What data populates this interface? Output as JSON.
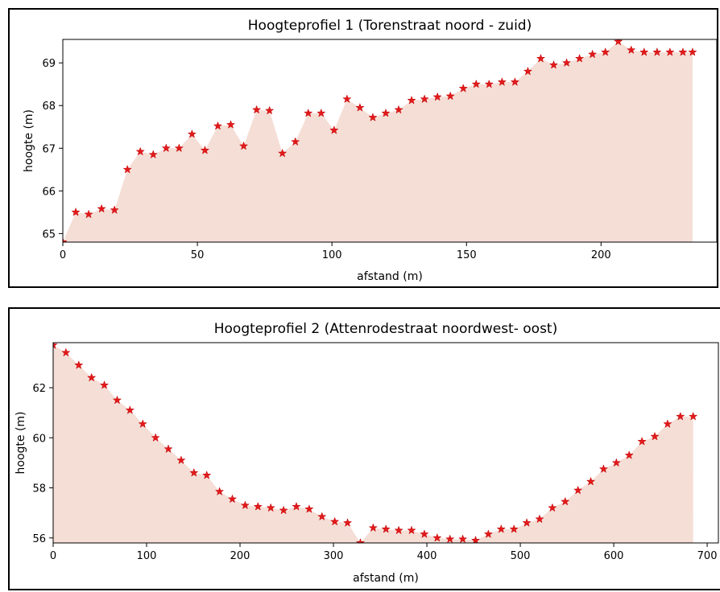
{
  "colors": {
    "marker": "#e31a1c",
    "fill": "#f5ded6",
    "axis": "#000000"
  },
  "chart_data": [
    {
      "type": "area",
      "title": "Hoogteprofiel 1 (Torenstraat noord - zuid)",
      "xlabel": "afstand (m)",
      "ylabel": "hoogte (m)",
      "xlim": [
        0,
        243
      ],
      "ylim": [
        64.8,
        69.55
      ],
      "xticks": [
        0,
        50,
        100,
        150,
        200
      ],
      "yticks": [
        65,
        66,
        67,
        68,
        69
      ],
      "grid": false,
      "marker": "star",
      "x": [
        0,
        4.8,
        9.6,
        14.4,
        19.2,
        24,
        28.8,
        33.6,
        38.4,
        43.2,
        48,
        52.8,
        57.6,
        62.4,
        67.2,
        72,
        76.8,
        81.6,
        86.4,
        91.2,
        96,
        100.8,
        105.6,
        110.4,
        115.2,
        120,
        124.8,
        129.6,
        134.4,
        139.2,
        144,
        148.8,
        153.6,
        158.4,
        163.2,
        168,
        172.8,
        177.6,
        182.4,
        187.2,
        192,
        196.8,
        201.6,
        206.4,
        211.2,
        216,
        220.8,
        225.6,
        230.4,
        234
      ],
      "y": [
        64.8,
        65.5,
        65.45,
        65.58,
        65.55,
        66.5,
        66.92,
        66.85,
        67.0,
        67.0,
        67.33,
        66.95,
        67.52,
        67.55,
        67.05,
        67.9,
        67.88,
        66.88,
        67.15,
        67.82,
        67.82,
        67.42,
        68.15,
        67.95,
        67.72,
        67.82,
        67.9,
        68.12,
        68.15,
        68.2,
        68.22,
        68.4,
        68.5,
        68.5,
        68.55,
        68.55,
        68.8,
        69.1,
        68.95,
        69.0,
        69.1,
        69.2,
        69.25,
        69.5,
        69.3,
        69.25,
        69.25,
        69.25,
        69.25,
        69.25
      ]
    },
    {
      "type": "area",
      "title": "Hoogteprofiel 2 (Attenrodestraat noordwest- oost)",
      "xlabel": "afstand (m)",
      "ylabel": "hoogte (m)",
      "xlim": [
        0,
        712
      ],
      "ylim": [
        55.8,
        63.8
      ],
      "xticks": [
        0,
        100,
        200,
        300,
        400,
        500,
        600,
        700
      ],
      "yticks": [
        56,
        58,
        60,
        62
      ],
      "grid": false,
      "marker": "star",
      "x": [
        0,
        13.7,
        27.4,
        41.1,
        54.8,
        68.5,
        82.2,
        95.9,
        109.6,
        123.3,
        137,
        150.7,
        164.4,
        178.1,
        191.8,
        205.5,
        219.2,
        232.9,
        246.6,
        260.3,
        274,
        287.7,
        301.4,
        315.1,
        328.8,
        342.5,
        356.2,
        369.9,
        383.6,
        397.3,
        411,
        424.7,
        438.4,
        452.1,
        465.8,
        479.5,
        493.2,
        506.9,
        520.6,
        534.3,
        548,
        561.7,
        575.4,
        589.1,
        602.8,
        616.5,
        630.2,
        643.9,
        657.6,
        671.3,
        685
      ],
      "y": [
        63.7,
        63.4,
        62.9,
        62.4,
        62.1,
        61.5,
        61.1,
        60.55,
        60.0,
        59.55,
        59.1,
        58.6,
        58.5,
        57.85,
        57.55,
        57.3,
        57.25,
        57.2,
        57.1,
        57.25,
        57.15,
        56.85,
        56.65,
        56.6,
        55.8,
        56.4,
        56.35,
        56.3,
        56.3,
        56.15,
        56.0,
        55.95,
        55.95,
        55.9,
        56.15,
        56.35,
        56.35,
        56.6,
        56.75,
        57.2,
        57.45,
        57.9,
        58.25,
        58.75,
        59.0,
        59.3,
        59.85,
        60.05,
        60.55,
        60.85,
        60.85
      ]
    }
  ]
}
